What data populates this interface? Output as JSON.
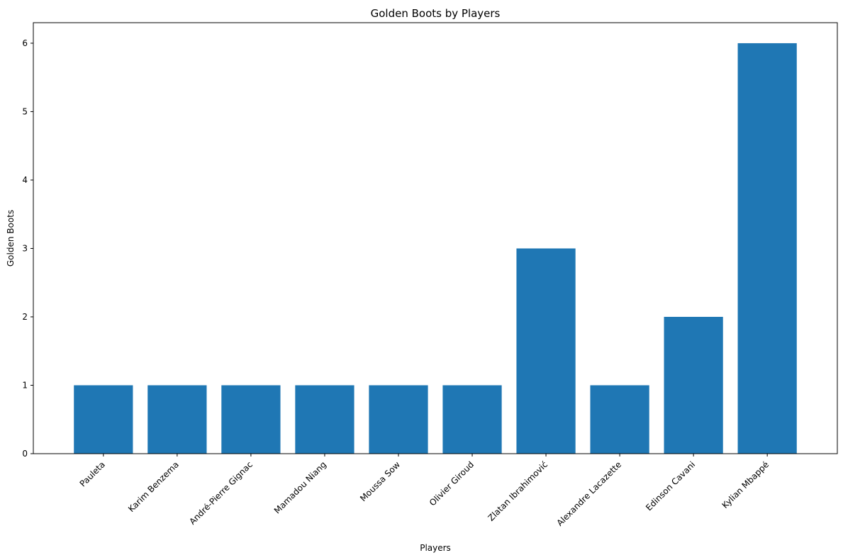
{
  "chart_data": {
    "type": "bar",
    "title": "Golden Boots by Players",
    "xlabel": "Players",
    "ylabel": "Golden Boots",
    "categories": [
      "Pauleta",
      "Karim Benzema",
      "André-Pierre Gignac",
      "Mamadou Niang",
      "Moussa Sow",
      "Olivier Giroud",
      "Zlatan Ibrahimović",
      "Alexandre Lacazette",
      "Edinson Cavani",
      "Kylian Mbappé"
    ],
    "values": [
      1,
      1,
      1,
      1,
      1,
      1,
      3,
      1,
      2,
      6
    ],
    "ylim": [
      0,
      6.3
    ],
    "yticks": [
      0,
      1,
      2,
      3,
      4,
      5,
      6
    ],
    "bar_color": "#1f77b4",
    "grid": false,
    "legend": "none"
  }
}
